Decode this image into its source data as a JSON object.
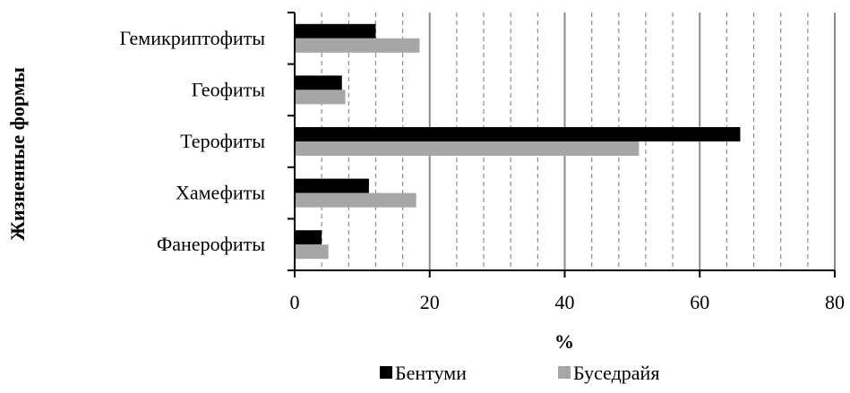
{
  "chart_data": {
    "type": "bar",
    "orientation": "horizontal",
    "title": "",
    "xlabel": "%",
    "ylabel": "Жизненные формы",
    "xlim": [
      0,
      80
    ],
    "x_ticks": [
      0,
      20,
      40,
      60,
      80
    ],
    "grid": "vertical major solid, minor dashed",
    "legend_position": "bottom",
    "categories": [
      "Гемикриптофиты",
      "Геофиты",
      "Терофиты",
      "Хамефиты",
      "Фанерофиты"
    ],
    "series": [
      {
        "name": "Бентуми",
        "color": "#000000",
        "values": [
          12,
          7,
          66,
          11,
          4
        ]
      },
      {
        "name": "Буседрайя",
        "color": "#a6a6a6",
        "values": [
          18.5,
          7.5,
          51,
          18,
          5
        ]
      }
    ]
  }
}
